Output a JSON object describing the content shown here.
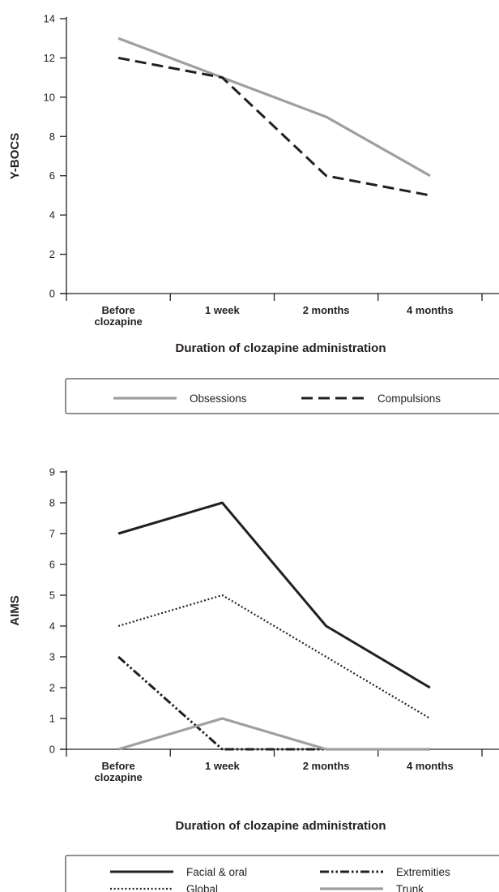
{
  "chart_data": [
    {
      "type": "line",
      "title": "",
      "xlabel": "Duration of clozapine administration",
      "ylabel": "Y-BOCS",
      "categories": [
        "Before|clozapine",
        "1 week",
        "2 months",
        "4 months"
      ],
      "ylim": [
        0,
        14
      ],
      "yticks": [
        0,
        2,
        4,
        6,
        8,
        10,
        12,
        14
      ],
      "grid": false,
      "legend_position": "bottom",
      "legend_columns": 2,
      "series": [
        {
          "name": "Obsessions",
          "values": [
            13,
            11,
            9,
            6
          ],
          "color": "#9d9fa2",
          "style": "solid"
        },
        {
          "name": "Compulsions",
          "values": [
            12,
            11,
            6,
            5
          ],
          "color": "#231f20",
          "style": "dashed"
        }
      ]
    },
    {
      "type": "line",
      "title": "",
      "xlabel": "Duration of clozapine administration",
      "ylabel": "AIMS",
      "categories": [
        "Before|clozapine",
        "1 week",
        "2 months",
        "4 months"
      ],
      "ylim": [
        0,
        9
      ],
      "yticks": [
        0,
        1,
        2,
        3,
        4,
        5,
        6,
        7,
        8,
        9
      ],
      "grid": false,
      "legend_position": "bottom",
      "legend_columns": 2,
      "series": [
        {
          "name": "Facial & oral",
          "values": [
            7,
            8,
            4,
            2
          ],
          "color": "#231f20",
          "style": "solid"
        },
        {
          "name": "Extremities",
          "values": [
            3,
            0,
            0,
            0
          ],
          "color": "#231f20",
          "style": "dashdotdot"
        },
        {
          "name": "Global",
          "values": [
            4,
            5,
            3,
            1
          ],
          "color": "#231f20",
          "style": "dotted"
        },
        {
          "name": "Trunk",
          "values": [
            0,
            1,
            0,
            0
          ],
          "color": "#9d9fa2",
          "style": "solid"
        }
      ]
    }
  ]
}
